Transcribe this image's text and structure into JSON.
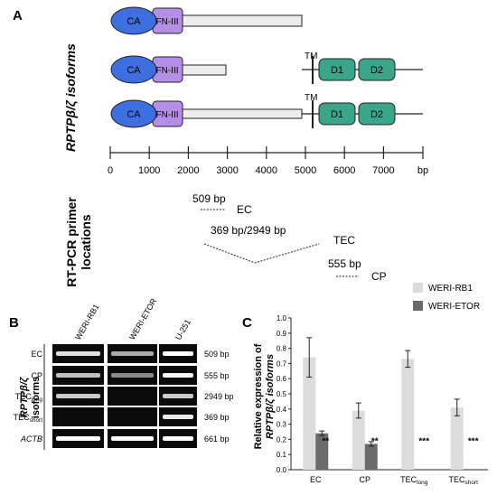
{
  "panel_labels": {
    "a": "A",
    "b": "B",
    "c": "C"
  },
  "panel_a": {
    "side_label": "RPTPβ/ζ isoforms",
    "domains": {
      "ca": "CA",
      "fn": "FN-III",
      "tm": "TM",
      "d1": "D1",
      "d2": "D2"
    },
    "scale": {
      "ticks": [
        "0",
        "1000",
        "2000",
        "3000",
        "4000",
        "5000",
        "6000",
        "7000"
      ],
      "unit": "bp"
    },
    "primer_side_label_line1": "RT-PCR primer",
    "primer_side_label_line2": "locations",
    "primers": [
      {
        "size": "509 bp",
        "name": "EC"
      },
      {
        "size": "369 bp/2949 bp",
        "name": "TEC"
      },
      {
        "size": "555 bp",
        "name": "CP"
      }
    ]
  },
  "panel_b": {
    "side_label_line1": "RPTPβ/ζ",
    "side_label_line2": "isoforms",
    "columns": [
      "WERI-RB1",
      "WERI-ETOR",
      "U-251"
    ],
    "rows": [
      {
        "name": "EC",
        "sub": "",
        "size": "509 bp"
      },
      {
        "name": "CP",
        "sub": "",
        "size": "555 bp"
      },
      {
        "name": "TEC",
        "sub": "long",
        "size": "2949 bp"
      },
      {
        "name": "TEC",
        "sub": "short",
        "size": "369 bp"
      },
      {
        "name": "ACTB",
        "sub": "",
        "size": "661 bp"
      }
    ]
  },
  "chart_data": {
    "type": "bar",
    "ylabel_line1": "Relative expression of",
    "ylabel_line2": "RPTPβ/ζ isoforms",
    "ylim": [
      0,
      1.0
    ],
    "yticks": [
      "0.0",
      "0.1",
      "0.2",
      "0.3",
      "0.4",
      "0.5",
      "0.6",
      "0.7",
      "0.8",
      "0.9",
      "1.0"
    ],
    "legend_position": "top-right",
    "categories": [
      {
        "name": "EC",
        "sub": ""
      },
      {
        "name": "CP",
        "sub": ""
      },
      {
        "name": "TEC",
        "sub": "long"
      },
      {
        "name": "TEC",
        "sub": "short"
      }
    ],
    "series": [
      {
        "name": "WERI-RB1",
        "color": "#dcdcdc",
        "values": [
          0.74,
          0.39,
          0.73,
          0.41
        ],
        "errors": [
          0.13,
          0.05,
          0.055,
          0.055
        ]
      },
      {
        "name": "WERI-ETOR",
        "color": "#6b6b6b",
        "values": [
          0.24,
          0.17,
          0.0,
          0.0
        ],
        "errors": [
          0.015,
          0.015,
          0.0,
          0.0
        ]
      }
    ],
    "significance": [
      "**",
      "**",
      "***",
      "***"
    ]
  }
}
